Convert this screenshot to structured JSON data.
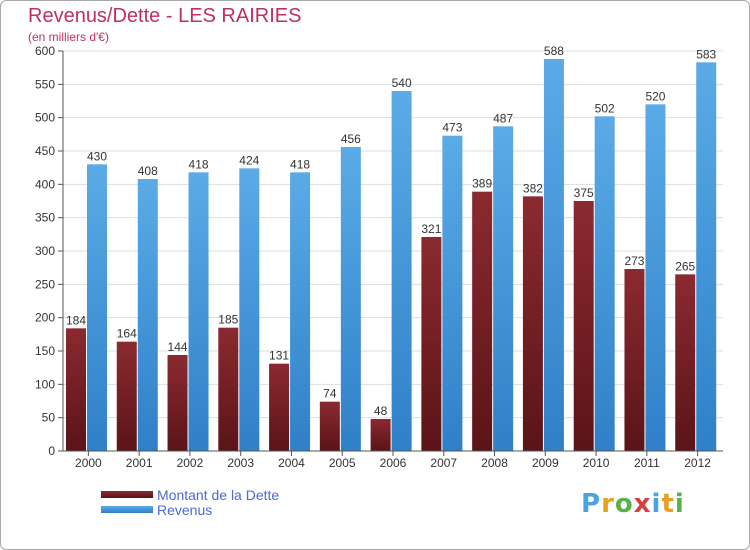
{
  "header": {
    "title": "Revenus/Dette - LES RAIRIES",
    "subtitle": "(en milliers d'€)"
  },
  "legend": {
    "debt_label": "Montant de la Dette",
    "revenue_label": "Revenus"
  },
  "logo": {
    "letters": [
      "P",
      "r",
      "o",
      "x",
      "i",
      "t",
      "i"
    ],
    "colors": [
      "#4aa3df",
      "#e8a020",
      "#5ab04a",
      "#d84040",
      "#4aa3df",
      "#e8a020",
      "#5ab04a"
    ]
  },
  "colors": {
    "debt": "#8b2a30",
    "debt_dark": "#5a1418",
    "revenue": "#5aabe6",
    "revenue_dark": "#2f80c8",
    "axis": "#555555",
    "grid": "#dddddd"
  },
  "chart_data": {
    "type": "bar",
    "categories": [
      "2000",
      "2001",
      "2002",
      "2003",
      "2004",
      "2005",
      "2006",
      "2007",
      "2008",
      "2009",
      "2010",
      "2011",
      "2012"
    ],
    "series": [
      {
        "name": "Montant de la Dette",
        "values": [
          184,
          164,
          144,
          185,
          131,
          74,
          48,
          321,
          389,
          382,
          375,
          273,
          265
        ]
      },
      {
        "name": "Revenus",
        "values": [
          430,
          408,
          418,
          424,
          418,
          456,
          540,
          473,
          487,
          588,
          502,
          520,
          583
        ]
      }
    ],
    "title": "Revenus/Dette - LES RAIRIES",
    "ylabel": "(en milliers d'€)",
    "ylim": [
      0,
      600
    ],
    "yticks": [
      0,
      50,
      100,
      150,
      200,
      250,
      300,
      350,
      400,
      450,
      500,
      550,
      600
    ],
    "grid": true,
    "legend_position": "bottom-left"
  }
}
